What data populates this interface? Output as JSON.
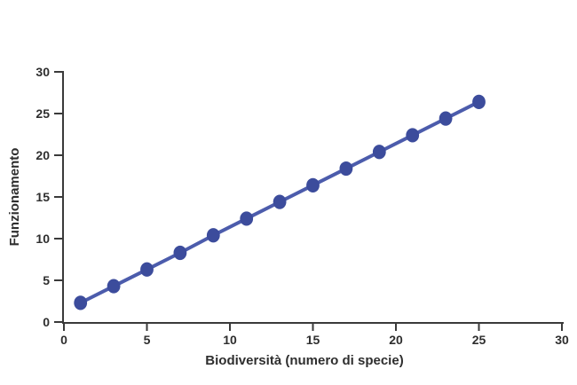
{
  "figure": {
    "background": "#ffffff"
  },
  "chart_data": {
    "type": "line",
    "title": "",
    "xlabel": "Biodiversità (numero di specie)",
    "ylabel": "Funzionamento",
    "x": [
      1,
      3,
      5,
      7,
      9,
      11,
      13,
      15,
      17,
      19,
      21,
      23,
      25
    ],
    "y": [
      2.3,
      4.3,
      6.3,
      8.3,
      10.4,
      12.4,
      14.4,
      16.4,
      18.4,
      20.4,
      22.4,
      24.4,
      26.4
    ],
    "xlim": [
      0,
      30
    ],
    "ylim": [
      0,
      30
    ],
    "xticks": [
      0,
      5,
      10,
      15,
      20,
      25,
      30
    ],
    "yticks": [
      0,
      5,
      10,
      15,
      20,
      25,
      30
    ],
    "grid": false,
    "legend": "none",
    "marker": "circle",
    "marker_color": "#3c4c9c",
    "line_color": "#4c5cac",
    "axis_color": "#3a3a3a",
    "tick_label_color": "#2e2e2e"
  }
}
